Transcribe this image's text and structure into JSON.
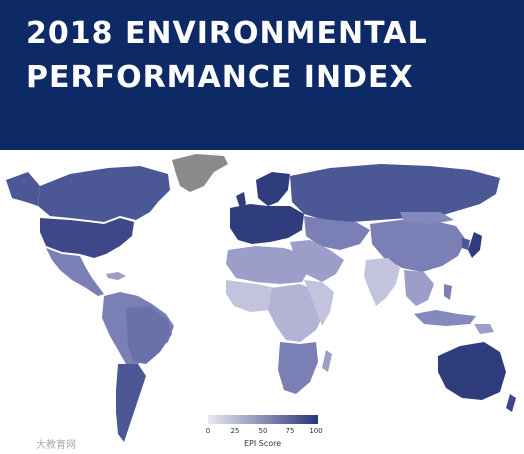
{
  "header": {
    "title_line1": "2018 ENVIRONMENTAL",
    "title_line2": "PERFORMANCE INDEX"
  },
  "legend": {
    "title": "EPI Score",
    "ticks": [
      "0",
      "25",
      "50",
      "75",
      "100"
    ],
    "color_low": "#e8e8f0",
    "color_high": "#2a3577"
  },
  "colors": {
    "header_bg": "#0d2a66",
    "title_text": "#ffffff",
    "no_data": "#8a8a8a",
    "ocean": "#ffffff",
    "land_high": "#2f3c7e",
    "land_mid_high": "#4c5796",
    "land_mid": "#7a7fb5",
    "land_mid_low": "#9c9dc9",
    "land_low": "#c3c3dd"
  },
  "watermark": {
    "text": "大教育网"
  }
}
